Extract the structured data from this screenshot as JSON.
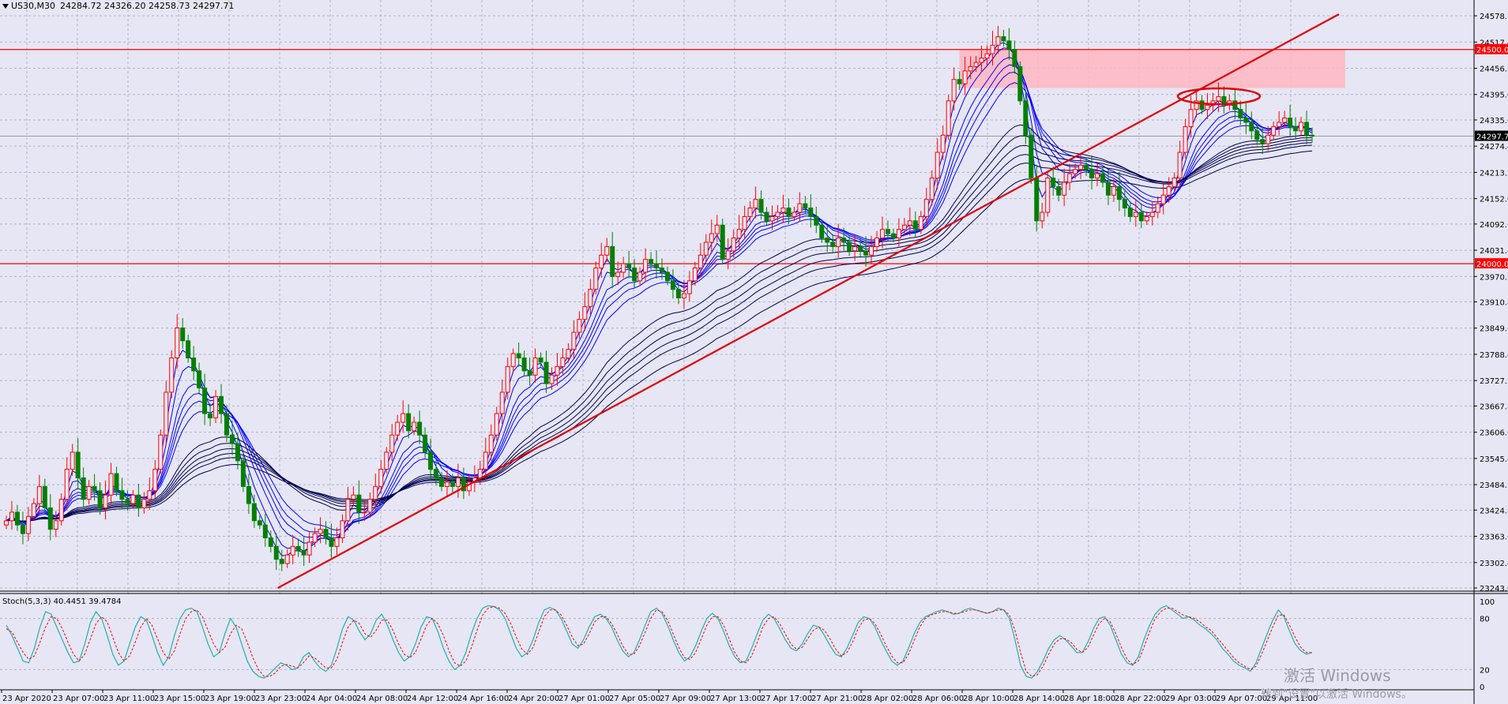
{
  "window": {
    "symbol_header": "US30,M30",
    "ohlc": "24284.72 24326.20 24258.73 24297.71"
  },
  "indicator": {
    "label": "Stoch(5,3,3) 40.4451 39.4784",
    "levels": [
      "100",
      "80",
      "20",
      "0"
    ]
  },
  "watermark": {
    "line1": "激活 Windows",
    "line2": "转到\"设置\"以激活 Windows。"
  },
  "colors": {
    "background": "#e6e6f5",
    "bull_candle": "#ff0000",
    "bear_candle": "#008000",
    "ma_blue": "#0000ff",
    "ma_dark": "#000050",
    "level_line": "#ff0000",
    "zone_fill": "#ffb6c1",
    "stoch_main": "#20b2aa",
    "stoch_signal": "#ff0000"
  },
  "chart_data": {
    "type": "candlestick",
    "symbol": "US30",
    "timeframe": "M30",
    "ylim": [
      23243.0,
      24578.7
    ],
    "y_ticks": [
      "24578.70",
      "24517.40",
      "24456.20",
      "24395.00",
      "24335.60",
      "24274.40",
      "24213.20",
      "24152.00",
      "24092.60",
      "24031.40",
      "23970.20",
      "23910.80",
      "23849.60",
      "23788.40",
      "23727.20",
      "23667.80",
      "23606.60",
      "23545.40",
      "23484.20",
      "23424.80",
      "23363.60",
      "23302.40",
      "23243.00"
    ],
    "price_flags": [
      {
        "label": "24500.00",
        "value": 24500.0,
        "kind": "level"
      },
      {
        "label": "24297.71",
        "value": 24297.71,
        "kind": "current"
      },
      {
        "label": "24000.00",
        "value": 24000.0,
        "kind": "level"
      }
    ],
    "x_ticks": [
      "23 Apr 2020",
      "23 Apr 07:00",
      "23 Apr 11:00",
      "23 Apr 15:00",
      "23 Apr 19:00",
      "23 Apr 23:00",
      "24 Apr 04:00",
      "24 Apr 08:00",
      "24 Apr 12:00",
      "24 Apr 16:00",
      "24 Apr 20:00",
      "27 Apr 01:00",
      "27 Apr 05:00",
      "27 Apr 09:00",
      "27 Apr 13:00",
      "27 Apr 17:00",
      "27 Apr 21:00",
      "28 Apr 02:00",
      "28 Apr 06:00",
      "28 Apr 10:00",
      "28 Apr 14:00",
      "28 Apr 18:00",
      "28 Apr 22:00",
      "29 Apr 03:00",
      "29 Apr 07:00",
      "29 Apr 11:00"
    ],
    "trendline": {
      "from": {
        "bar": 55,
        "price": 23243
      },
      "to": {
        "bar": 232,
        "price": 24578
      }
    },
    "resistance_zone": {
      "from_bar": 173,
      "to_bar": 243,
      "top": 24500,
      "bottom": 24410
    },
    "closes": [
      23400,
      23420,
      23390,
      23370,
      23410,
      23440,
      23480,
      23430,
      23380,
      23400,
      23450,
      23520,
      23560,
      23500,
      23450,
      23480,
      23470,
      23430,
      23460,
      23510,
      23470,
      23450,
      23440,
      23460,
      23430,
      23450,
      23470,
      23520,
      23600,
      23700,
      23780,
      23850,
      23820,
      23780,
      23750,
      23710,
      23650,
      23640,
      23690,
      23650,
      23600,
      23580,
      23540,
      23480,
      23440,
      23400,
      23390,
      23360,
      23340,
      23310,
      23300,
      23320,
      23340,
      23330,
      23320,
      23350,
      23370,
      23380,
      23360,
      23340,
      23360,
      23400,
      23450,
      23460,
      23420,
      23420,
      23450,
      23480,
      23520,
      23560,
      23600,
      23630,
      23650,
      23610,
      23630,
      23600,
      23560,
      23520,
      23500,
      23480,
      23490,
      23480,
      23500,
      23470,
      23490,
      23500,
      23520,
      23560,
      23600,
      23650,
      23700,
      23760,
      23790,
      23780,
      23750,
      23740,
      23780,
      23770,
      23720,
      23740,
      23760,
      23780,
      23800,
      23840,
      23870,
      23900,
      23940,
      23990,
      24020,
      24040,
      23970,
      23980,
      24000,
      23990,
      23960,
      23980,
      24010,
      24000,
      23990,
      23980,
      23960,
      23940,
      23920,
      23930,
      23960,
      23990,
      24020,
      24050,
      24070,
      24090,
      24010,
      24030,
      24060,
      24080,
      24110,
      24130,
      24150,
      24120,
      24100,
      24110,
      24120,
      24130,
      24110,
      24120,
      24140,
      24130,
      24110,
      24090,
      24060,
      24050,
      24040,
      24060,
      24050,
      24030,
      24040,
      24030,
      24020,
      24040,
      24060,
      24080,
      24070,
      24060,
      24080,
      24090,
      24100,
      24080,
      24110,
      24150,
      24200,
      24260,
      24300,
      24380,
      24430,
      24420,
      24450,
      24460,
      24470,
      24480,
      24490,
      24510,
      24530,
      24520,
      24500,
      24460,
      24380,
      24300,
      24200,
      24100,
      24120,
      24200,
      24180,
      24160,
      24190,
      24210,
      24220,
      24230,
      24220,
      24200,
      24210,
      24190,
      24160,
      24180,
      24150,
      24130,
      24110,
      24120,
      24100,
      24110,
      24120,
      24140,
      24160,
      24180,
      24200,
      24260,
      24320,
      24360,
      24380,
      24360,
      24370,
      24380,
      24390,
      24370,
      24380,
      24360,
      24340,
      24330,
      24310,
      24290,
      24280,
      24300,
      24320,
      24330,
      24340,
      24320,
      24310,
      24330,
      24300,
      24297.71
    ],
    "stoch_main": [
      72,
      60,
      45,
      30,
      28,
      45,
      70,
      88,
      85,
      70,
      55,
      40,
      28,
      30,
      50,
      75,
      88,
      80,
      60,
      38,
      25,
      30,
      50,
      70,
      82,
      78,
      60,
      40,
      25,
      35,
      60,
      80,
      90,
      92,
      88,
      70,
      50,
      35,
      40,
      62,
      80,
      70,
      50,
      30,
      18,
      12,
      10,
      15,
      22,
      28,
      25,
      20,
      22,
      35,
      40,
      30,
      22,
      18,
      25,
      45,
      68,
      82,
      78,
      65,
      55,
      62,
      78,
      85,
      72,
      55,
      40,
      30,
      35,
      50,
      70,
      82,
      80,
      65,
      45,
      30,
      20,
      25,
      40,
      62,
      80,
      92,
      95,
      94,
      90,
      80,
      62,
      45,
      35,
      40,
      55,
      75,
      90,
      93,
      90,
      80,
      65,
      50,
      45,
      55,
      70,
      82,
      85,
      80,
      70,
      55,
      42,
      35,
      40,
      55,
      72,
      88,
      92,
      86,
      72,
      55,
      40,
      30,
      35,
      48,
      65,
      80,
      86,
      80,
      65,
      48,
      35,
      28,
      30,
      45,
      62,
      78,
      85,
      80,
      68,
      55,
      45,
      42,
      50,
      62,
      72,
      70,
      60,
      48,
      38,
      35,
      45,
      60,
      75,
      82,
      80,
      70,
      55,
      42,
      30,
      25,
      30,
      45,
      62,
      75,
      82,
      85,
      88,
      90,
      88,
      85,
      86,
      90,
      92,
      90,
      88,
      86,
      88,
      92,
      90,
      80,
      55,
      25,
      12,
      10,
      18,
      30,
      45,
      55,
      60,
      55,
      48,
      40,
      40,
      52,
      68,
      80,
      82,
      72,
      55,
      38,
      28,
      25,
      35,
      55,
      72,
      85,
      92,
      95,
      90,
      85,
      80,
      82,
      78,
      72,
      68,
      62,
      55,
      45,
      38,
      30,
      25,
      22,
      18,
      28,
      45,
      62,
      78,
      90,
      82,
      65,
      50,
      42,
      38,
      40
    ],
    "stoch_signal": [
      68,
      64,
      52,
      40,
      32,
      36,
      52,
      70,
      82,
      80,
      68,
      52,
      38,
      30,
      38,
      56,
      74,
      82,
      76,
      58,
      40,
      30,
      36,
      52,
      70,
      80,
      72,
      56,
      40,
      32,
      42,
      62,
      80,
      88,
      90,
      82,
      66,
      50,
      40,
      46,
      62,
      72,
      68,
      52,
      34,
      20,
      12,
      12,
      16,
      24,
      26,
      24,
      22,
      28,
      36,
      34,
      28,
      22,
      22,
      32,
      52,
      70,
      78,
      74,
      62,
      58,
      66,
      78,
      78,
      66,
      50,
      38,
      34,
      40,
      56,
      72,
      80,
      74,
      60,
      42,
      28,
      24,
      30,
      46,
      66,
      84,
      92,
      94,
      92,
      86,
      74,
      58,
      44,
      38,
      46,
      64,
      82,
      90,
      90,
      84,
      72,
      58,
      48,
      50,
      62,
      76,
      82,
      82,
      74,
      62,
      48,
      38,
      38,
      48,
      64,
      80,
      90,
      88,
      78,
      62,
      46,
      34,
      32,
      40,
      56,
      72,
      82,
      82,
      72,
      56,
      40,
      30,
      28,
      36,
      52,
      70,
      80,
      82,
      74,
      62,
      50,
      44,
      46,
      56,
      66,
      70,
      66,
      56,
      44,
      36,
      40,
      52,
      68,
      78,
      80,
      74,
      62,
      48,
      36,
      28,
      28,
      38,
      54,
      70,
      80,
      84,
      86,
      88,
      88,
      86,
      86,
      88,
      90,
      90,
      88,
      86,
      88,
      90,
      90,
      84,
      66,
      40,
      18,
      12,
      14,
      24,
      38,
      50,
      56,
      56,
      52,
      44,
      40,
      46,
      60,
      74,
      80,
      76,
      62,
      46,
      32,
      26,
      30,
      46,
      64,
      80,
      88,
      92,
      92,
      88,
      84,
      82,
      80,
      76,
      70,
      66,
      58,
      50,
      42,
      34,
      28,
      24,
      20,
      24,
      38,
      54,
      70,
      84,
      84,
      72,
      58,
      46,
      40,
      40
    ]
  }
}
